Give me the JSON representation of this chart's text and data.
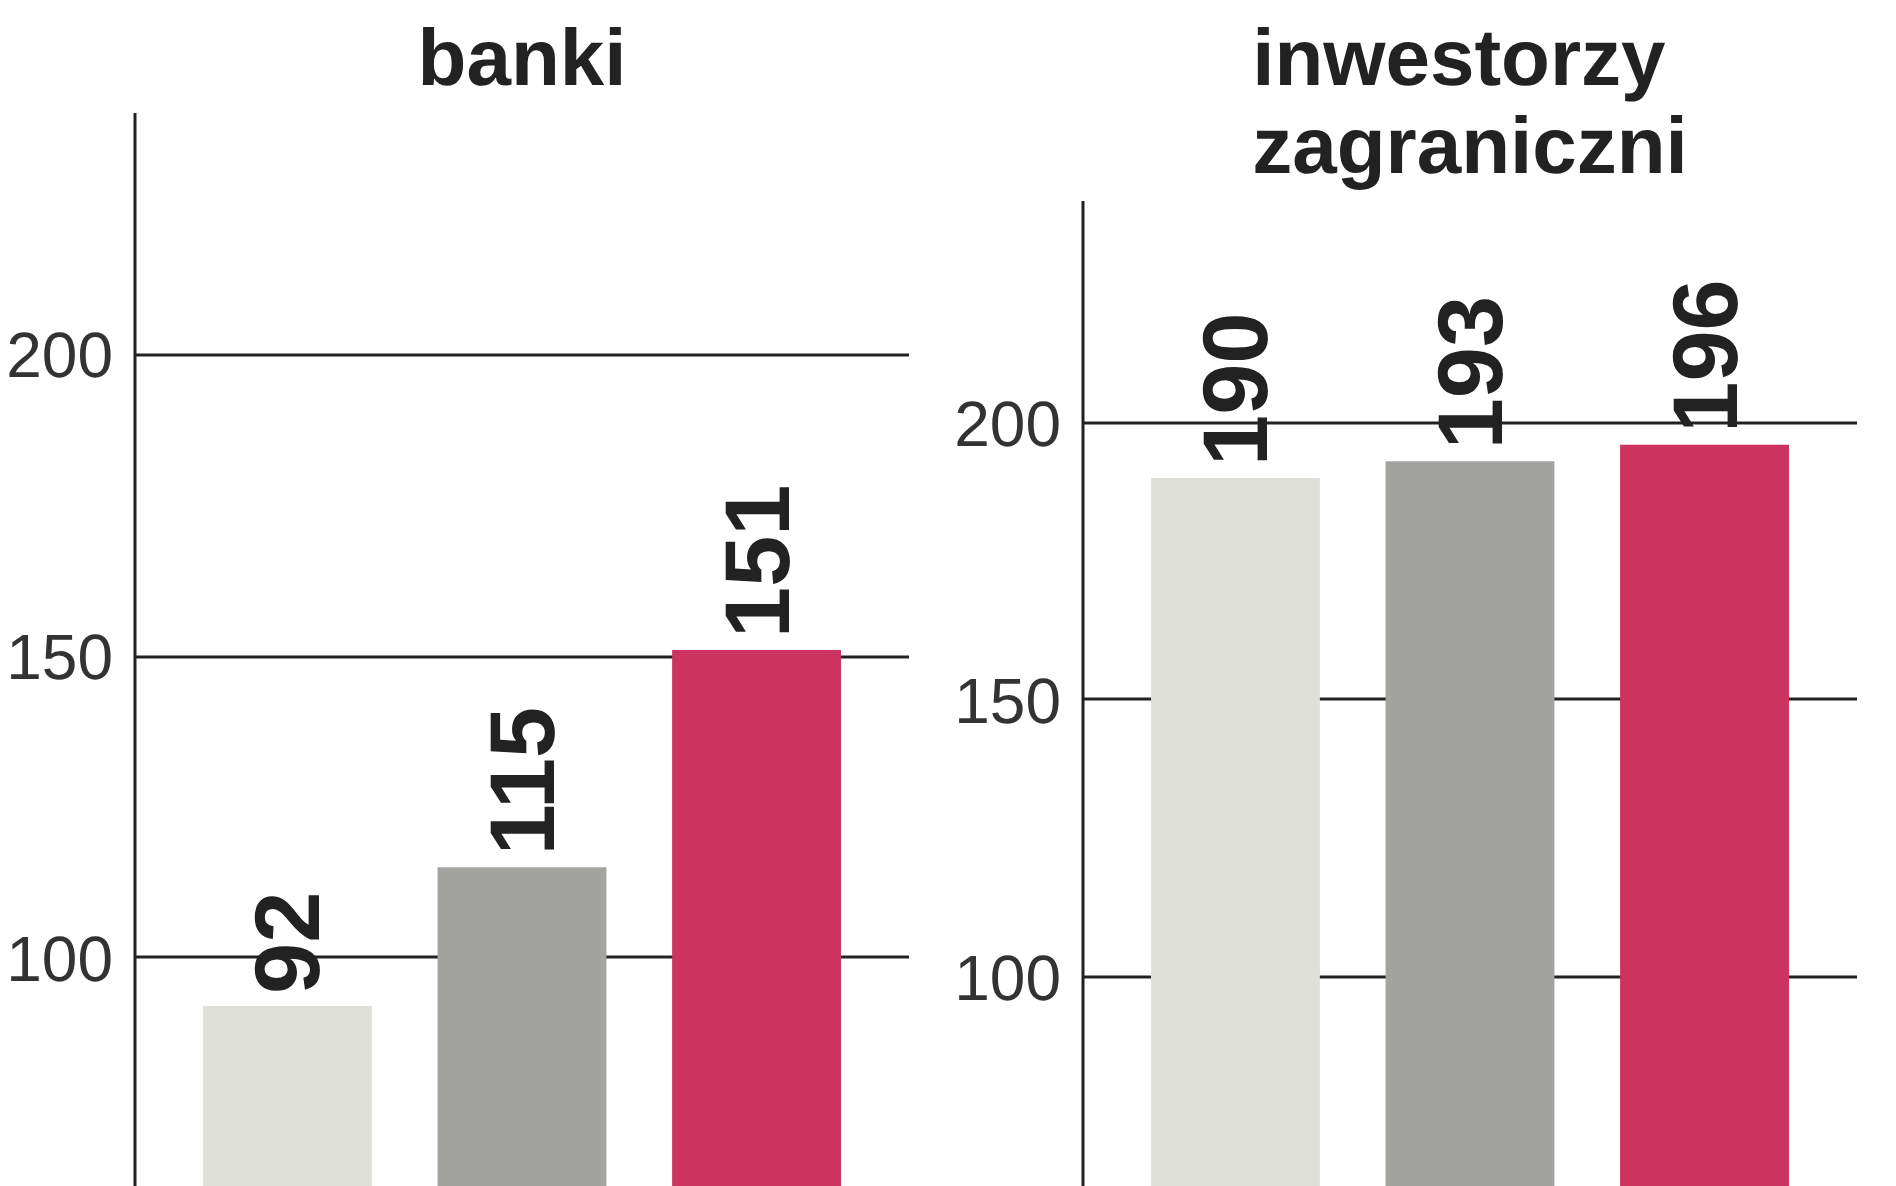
{
  "chart_data": [
    {
      "type": "bar",
      "title": "banki",
      "categories": [
        null,
        null,
        null
      ],
      "values": [
        92,
        115,
        151
      ],
      "colors": [
        "#e0e0da",
        "#a3a3a0",
        "#cc3360"
      ],
      "ylim": [
        62,
        240
      ],
      "yticks": [
        100,
        150,
        200
      ],
      "grid": "y",
      "data_labels": true
    },
    {
      "type": "bar",
      "title": "inwestorzy zagraniczni",
      "categories": [
        null,
        null,
        null
      ],
      "values": [
        190,
        193,
        196
      ],
      "colors": [
        "#e0e0da",
        "#a3a3a0",
        "#cc3360"
      ],
      "ylim": [
        62,
        240
      ],
      "yticks": [
        100,
        150,
        200
      ],
      "grid": "y",
      "data_labels": true
    }
  ]
}
